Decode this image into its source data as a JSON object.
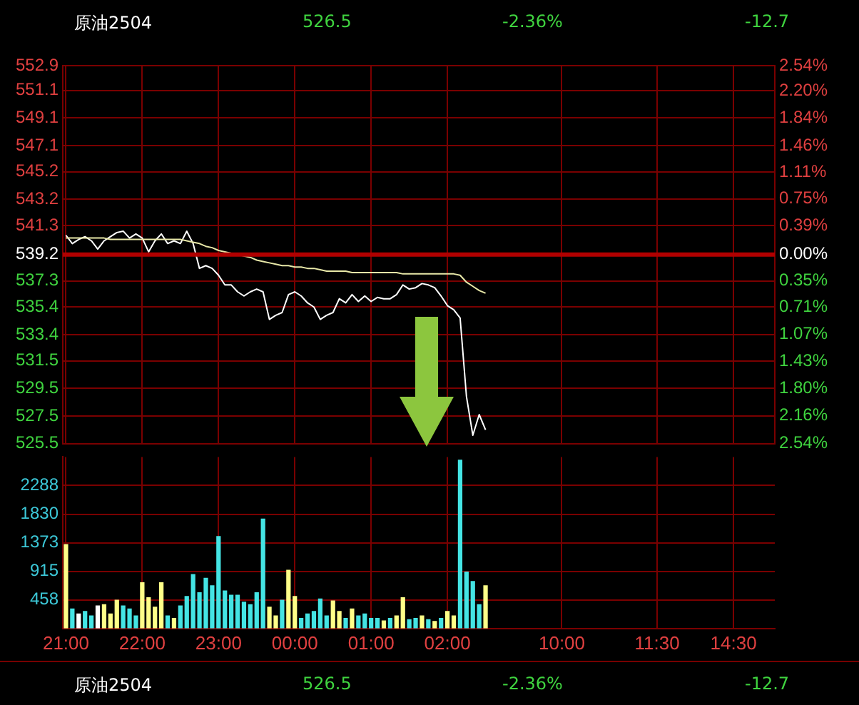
{
  "chart_data": [
    {
      "type": "line",
      "title": "原油2504",
      "annotations": [
        "526.5",
        "-2.36%",
        "-12.7"
      ],
      "categories": [
        null,
        null,
        null,
        null,
        null,
        null,
        null,
        null,
        null,
        null,
        null,
        null,
        null,
        null,
        null,
        null,
        null,
        null,
        null,
        null,
        null,
        null,
        null,
        null,
        null,
        null,
        null,
        null,
        null,
        null,
        null,
        null,
        null,
        null,
        null,
        null,
        null,
        null,
        null,
        null,
        null,
        null,
        null,
        null,
        null,
        null,
        null,
        null,
        null,
        null,
        null,
        null,
        null,
        null,
        null,
        null,
        null,
        null,
        null,
        null,
        null,
        null,
        null,
        null,
        null,
        null,
        null,
        null,
        null,
        null,
        null,
        null,
        null,
        null,
        null,
        null,
        null,
        null,
        null,
        null,
        null,
        null,
        null,
        null,
        null,
        null,
        null,
        null,
        null,
        null,
        null,
        null,
        null,
        null,
        null,
        null,
        null,
        null,
        null,
        null,
        null,
        null,
        null,
        null,
        null,
        null,
        null,
        null,
        null,
        null,
        null,
        null
      ],
      "tick_labels": "y",
      "ylim": [
        525.5,
        552.9
      ],
      "yticks": [
        552.9,
        551.1,
        549.1,
        547.1,
        545.2,
        543.2,
        541.3,
        539.2,
        537.3,
        535.4,
        533.4,
        531.5,
        529.5,
        527.5,
        525.5
      ],
      "y2lim": [
        -2.54,
        2.54
      ],
      "y2ticks": [
        {
          "value": 2.54,
          "label": "2.54%"
        },
        {
          "value": 2.2,
          "label": "2.20%"
        },
        {
          "value": 1.84,
          "label": "1.84%"
        },
        {
          "value": 1.46,
          "label": "1.46%"
        },
        {
          "value": 1.11,
          "label": "1.11%"
        },
        {
          "value": 0.75,
          "label": "0.75%"
        },
        {
          "value": 0.39,
          "label": "0.39%"
        },
        {
          "value": 0,
          "label": "0.00%"
        },
        {
          "value": -0.35,
          "label": "0.35%"
        },
        {
          "value": -0.71,
          "label": "0.71%"
        },
        {
          "value": -1.07,
          "label": "1.07%"
        },
        {
          "value": -1.43,
          "label": "1.43%"
        },
        {
          "value": -1.8,
          "label": "1.80%"
        },
        {
          "value": -2.16,
          "label": "2.16%"
        },
        {
          "value": -2.54,
          "label": "2.54%"
        }
      ],
      "ref_lines": [
        {
          "axis": "y",
          "value": 539.2,
          "color": "#b00000"
        }
      ],
      "grid": true,
      "marker": "none",
      "series": [
        {
          "color": "#e8e8a8",
          "values": [
            540.4,
            540.4,
            540.4,
            540.4,
            540.4,
            540.4,
            540.4,
            540.3,
            540.3,
            540.3,
            540.3,
            540.3,
            540.3,
            540.3,
            540.3,
            540.3,
            540.3,
            540.3,
            540.3,
            540.2,
            540.1,
            540.0,
            539.8,
            539.7,
            539.5,
            539.4,
            539.3,
            539.2,
            539.1,
            539.0,
            538.8,
            538.7,
            538.6,
            538.5,
            538.4,
            538.4,
            538.3,
            538.3,
            538.2,
            538.2,
            538.1,
            538.0,
            538.0,
            538.0,
            538.0,
            537.9,
            537.9,
            537.9,
            537.9,
            537.9,
            537.9,
            537.9,
            537.9,
            537.8,
            537.8,
            537.8,
            537.8,
            537.8,
            537.8,
            537.8,
            537.8,
            537.8,
            537.7,
            537.2,
            536.9,
            536.6,
            536.4,
            null,
            null,
            null,
            null,
            null,
            null,
            null,
            null,
            null,
            null,
            null,
            null,
            null,
            null,
            null,
            null,
            null,
            null,
            null,
            null,
            null,
            null,
            null,
            null,
            null,
            null,
            null,
            null,
            null,
            null,
            null,
            null,
            null,
            null,
            null,
            null,
            null,
            null,
            null,
            null,
            null,
            null,
            null,
            null,
            null
          ]
        },
        {
          "color": "#ffffff",
          "values": [
            540.6,
            540.0,
            540.3,
            540.5,
            540.2,
            539.6,
            540.2,
            540.5,
            540.8,
            540.9,
            540.4,
            540.7,
            540.4,
            539.4,
            540.2,
            540.7,
            540.0,
            540.2,
            540.0,
            540.9,
            540.0,
            538.2,
            538.4,
            538.2,
            537.7,
            537.0,
            537.0,
            536.5,
            536.2,
            536.5,
            536.7,
            536.5,
            534.5,
            534.8,
            535.0,
            536.3,
            536.5,
            536.2,
            535.7,
            535.4,
            534.5,
            534.8,
            535.0,
            536.0,
            535.7,
            536.3,
            535.8,
            536.2,
            535.8,
            536.1,
            536.0,
            536.0,
            536.3,
            537.0,
            536.7,
            536.8,
            537.1,
            537.0,
            536.8,
            536.2,
            535.5,
            535.2,
            534.6,
            528.9,
            526.1,
            527.6,
            526.5,
            null,
            null,
            null,
            null,
            null,
            null,
            null,
            null,
            null,
            null,
            null,
            null,
            null,
            null,
            null,
            null,
            null,
            null,
            null,
            null,
            null,
            null,
            null,
            null,
            null,
            null,
            null,
            null,
            null,
            null,
            null,
            null,
            null,
            null,
            null,
            null,
            null,
            null,
            null,
            null,
            null,
            null,
            null,
            null,
            null
          ]
        }
      ]
    },
    {
      "type": "bar",
      "categories": [
        "21:00",
        null,
        null,
        null,
        null,
        null,
        null,
        null,
        null,
        null,
        null,
        null,
        "22:00",
        null,
        null,
        null,
        null,
        null,
        null,
        null,
        null,
        null,
        null,
        null,
        "23:00",
        null,
        null,
        null,
        null,
        null,
        null,
        null,
        null,
        null,
        null,
        null,
        "00:00",
        null,
        null,
        null,
        null,
        null,
        null,
        null,
        null,
        null,
        null,
        null,
        "01:00",
        null,
        null,
        null,
        null,
        null,
        null,
        null,
        null,
        null,
        null,
        null,
        "02:00",
        null,
        null,
        null,
        null,
        null,
        null,
        null,
        null,
        null,
        null,
        null,
        null,
        null,
        null,
        null,
        null,
        null,
        "10:00",
        null,
        null,
        null,
        null,
        null,
        null,
        null,
        null,
        null,
        null,
        null,
        null,
        null,
        null,
        "11:30",
        null,
        null,
        null,
        null,
        null,
        null,
        null,
        null,
        null,
        null,
        null,
        "14:30",
        null,
        null,
        null,
        null,
        null,
        null
      ],
      "ylim": [
        0,
        2745
      ],
      "yticks": [
        458,
        915,
        1373,
        1830,
        2288
      ],
      "grid": true,
      "values": [
        1350,
        320,
        240,
        280,
        210,
        370,
        390,
        240,
        460,
        370,
        320,
        210,
        740,
        500,
        350,
        740,
        210,
        170,
        370,
        520,
        870,
        580,
        810,
        690,
        1480,
        610,
        540,
        540,
        430,
        390,
        580,
        1760,
        350,
        210,
        460,
        940,
        520,
        170,
        240,
        280,
        480,
        210,
        450,
        280,
        170,
        320,
        210,
        240,
        170,
        170,
        130,
        170,
        210,
        500,
        150,
        170,
        210,
        150,
        120,
        170,
        280,
        210,
        2700,
        910,
        760,
        390,
        690,
        null,
        null,
        null,
        null,
        null,
        null,
        null,
        null,
        null,
        null,
        null,
        null,
        null,
        null,
        null,
        null,
        null,
        null,
        null,
        null,
        null,
        null,
        null,
        null,
        null,
        null,
        null,
        null,
        null,
        null,
        null,
        null,
        null,
        null,
        null,
        null,
        null,
        null,
        null,
        null,
        null,
        null,
        null,
        null,
        null
      ],
      "colors": [
        "#ffff88",
        "#44e4e4",
        "#ffffff",
        "#44e4e4",
        "#44e4e4",
        "#ffffff",
        "#ffff88",
        "#ffff88",
        "#ffff88",
        "#44e4e4",
        "#44e4e4",
        "#44e4e4",
        "#ffff88",
        "#ffff88",
        "#ffff88",
        "#ffff88",
        "#44e4e4",
        "#ffff88",
        "#44e4e4",
        "#44e4e4",
        "#44e4e4",
        "#44e4e4",
        "#44e4e4",
        "#44e4e4",
        "#44e4e4",
        "#44e4e4",
        "#44e4e4",
        "#44e4e4",
        "#44e4e4",
        "#44e4e4",
        "#44e4e4",
        "#44e4e4",
        "#ffff88",
        "#ffff88",
        "#44e4e4",
        "#ffff88",
        "#ffff88",
        "#44e4e4",
        "#44e4e4",
        "#44e4e4",
        "#44e4e4",
        "#44e4e4",
        "#ffff88",
        "#ffff88",
        "#44e4e4",
        "#ffff88",
        "#44e4e4",
        "#44e4e4",
        "#44e4e4",
        "#44e4e4",
        "#ffff88",
        "#44e4e4",
        "#ffff88",
        "#ffff88",
        "#44e4e4",
        "#44e4e4",
        "#ffff88",
        "#44e4e4",
        "#ffff88",
        "#44e4e4",
        "#ffff88",
        "#ffff88",
        "#44e4e4",
        "#44e4e4",
        "#44e4e4",
        "#44e4e4",
        "#ffff88",
        null,
        null,
        null,
        null,
        null,
        null,
        null,
        null,
        null,
        null,
        null,
        null,
        null,
        null,
        null,
        null,
        null,
        null,
        null,
        null,
        null,
        null,
        null,
        null,
        null,
        null,
        null,
        null,
        null,
        null,
        null,
        null,
        null,
        null,
        null,
        null,
        null,
        null,
        null,
        null,
        null,
        null,
        null,
        null,
        null
      ]
    }
  ]
}
